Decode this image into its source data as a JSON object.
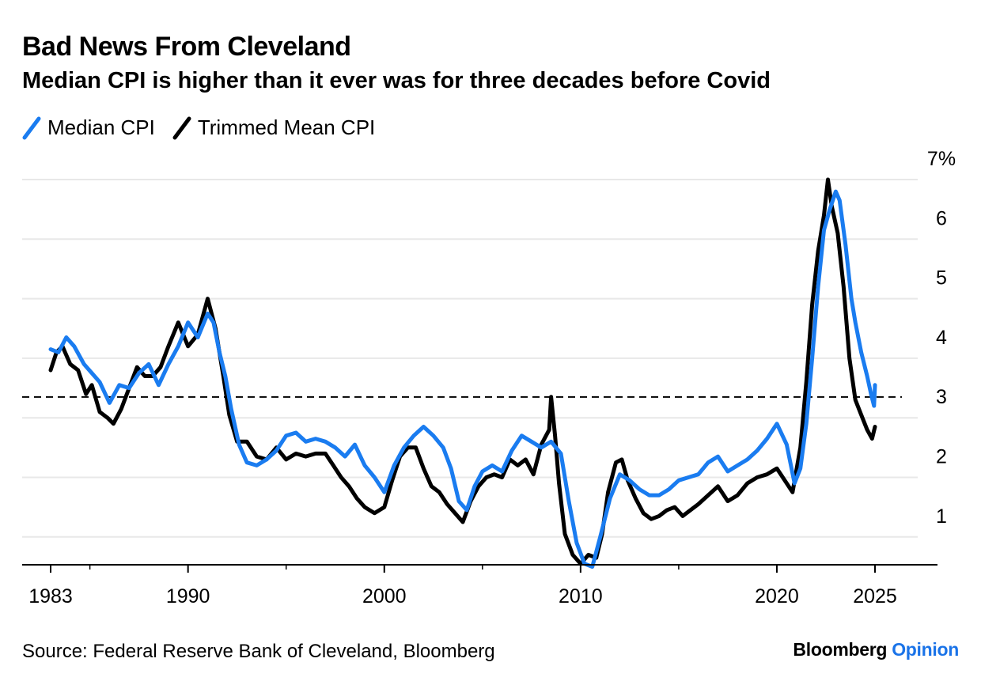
{
  "title": "Bad News From Cleveland",
  "subtitle": "Median CPI is higher than it ever was for three decades before Covid",
  "source": "Source: Federal Reserve Bank of Cleveland, Bloomberg",
  "brand": {
    "name": "Bloomberg",
    "accent": "Opinion"
  },
  "colors": {
    "median": "#1a7cf0",
    "trimmed": "#000000",
    "grid": "#e8e8e8",
    "accent": "#1a73e8"
  },
  "chart_data": {
    "type": "line",
    "title": "Bad News From Cleveland",
    "subtitle": "Median CPI is higher than it ever was for three decades before Covid",
    "xlabel": "",
    "ylabel": "",
    "x_range": [
      1983,
      2025
    ],
    "ylim": [
      0.5,
      7
    ],
    "y_ticks": [
      1,
      2,
      3,
      4,
      5,
      6,
      7
    ],
    "y_tick_labels": [
      "1",
      "2",
      "3",
      "4",
      "5",
      "6",
      "7%"
    ],
    "x_ticks": [
      1983,
      1990,
      2000,
      2010,
      2020,
      2025
    ],
    "x_tick_labels": [
      "1983",
      "1990",
      "2000",
      "2010",
      "2020",
      "2025"
    ],
    "grid": true,
    "legend": "top-left",
    "reference_line": {
      "value": 3.35,
      "style": "dashed"
    },
    "series": [
      {
        "name": "Median CPI",
        "color": "#1a7cf0",
        "points": [
          [
            1983.0,
            4.15
          ],
          [
            1983.4,
            4.1
          ],
          [
            1983.8,
            4.35
          ],
          [
            1984.2,
            4.2
          ],
          [
            1984.7,
            3.9
          ],
          [
            1985.1,
            3.75
          ],
          [
            1985.5,
            3.6
          ],
          [
            1986.0,
            3.25
          ],
          [
            1986.5,
            3.55
          ],
          [
            1987.0,
            3.5
          ],
          [
            1987.5,
            3.75
          ],
          [
            1988.0,
            3.9
          ],
          [
            1988.5,
            3.55
          ],
          [
            1989.0,
            3.9
          ],
          [
            1989.5,
            4.2
          ],
          [
            1990.0,
            4.6
          ],
          [
            1990.5,
            4.35
          ],
          [
            1991.0,
            4.75
          ],
          [
            1991.3,
            4.6
          ],
          [
            1991.6,
            4.1
          ],
          [
            1991.9,
            3.7
          ],
          [
            1992.2,
            3.15
          ],
          [
            1992.6,
            2.55
          ],
          [
            1993.0,
            2.25
          ],
          [
            1993.5,
            2.2
          ],
          [
            1994.0,
            2.3
          ],
          [
            1994.5,
            2.45
          ],
          [
            1995.0,
            2.7
          ],
          [
            1995.5,
            2.75
          ],
          [
            1996.0,
            2.6
          ],
          [
            1996.5,
            2.65
          ],
          [
            1997.0,
            2.6
          ],
          [
            1997.5,
            2.5
          ],
          [
            1998.0,
            2.35
          ],
          [
            1998.5,
            2.55
          ],
          [
            1999.0,
            2.2
          ],
          [
            1999.5,
            2.0
          ],
          [
            2000.0,
            1.75
          ],
          [
            2000.5,
            2.2
          ],
          [
            2001.0,
            2.5
          ],
          [
            2001.5,
            2.7
          ],
          [
            2002.0,
            2.85
          ],
          [
            2002.5,
            2.7
          ],
          [
            2003.0,
            2.5
          ],
          [
            2003.4,
            2.15
          ],
          [
            2003.8,
            1.6
          ],
          [
            2004.2,
            1.45
          ],
          [
            2004.6,
            1.85
          ],
          [
            2005.0,
            2.1
          ],
          [
            2005.5,
            2.2
          ],
          [
            2006.0,
            2.1
          ],
          [
            2006.5,
            2.45
          ],
          [
            2007.0,
            2.7
          ],
          [
            2007.5,
            2.6
          ],
          [
            2008.0,
            2.5
          ],
          [
            2008.5,
            2.6
          ],
          [
            2009.0,
            2.4
          ],
          [
            2009.4,
            1.6
          ],
          [
            2009.8,
            0.9
          ],
          [
            2010.2,
            0.55
          ],
          [
            2010.6,
            0.5
          ],
          [
            2011.0,
            1.0
          ],
          [
            2011.5,
            1.65
          ],
          [
            2012.0,
            2.05
          ],
          [
            2012.5,
            1.95
          ],
          [
            2013.0,
            1.8
          ],
          [
            2013.5,
            1.7
          ],
          [
            2014.0,
            1.7
          ],
          [
            2014.5,
            1.8
          ],
          [
            2015.0,
            1.95
          ],
          [
            2015.5,
            2.0
          ],
          [
            2016.0,
            2.05
          ],
          [
            2016.5,
            2.25
          ],
          [
            2017.0,
            2.35
          ],
          [
            2017.5,
            2.1
          ],
          [
            2018.0,
            2.2
          ],
          [
            2018.5,
            2.3
          ],
          [
            2019.0,
            2.45
          ],
          [
            2019.5,
            2.65
          ],
          [
            2020.0,
            2.9
          ],
          [
            2020.5,
            2.55
          ],
          [
            2020.9,
            1.9
          ],
          [
            2021.2,
            2.15
          ],
          [
            2021.5,
            2.9
          ],
          [
            2021.8,
            4.0
          ],
          [
            2022.1,
            5.2
          ],
          [
            2022.4,
            6.15
          ],
          [
            2022.7,
            6.5
          ],
          [
            2023.0,
            6.8
          ],
          [
            2023.2,
            6.65
          ],
          [
            2023.5,
            5.9
          ],
          [
            2023.8,
            5.0
          ],
          [
            2024.0,
            4.6
          ],
          [
            2024.3,
            4.1
          ],
          [
            2024.6,
            3.7
          ],
          [
            2024.8,
            3.4
          ],
          [
            2024.95,
            3.2
          ],
          [
            2025.0,
            3.55
          ]
        ]
      },
      {
        "name": "Trimmed Mean CPI",
        "color": "#000000",
        "points": [
          [
            1983.0,
            3.8
          ],
          [
            1983.3,
            4.1
          ],
          [
            1983.6,
            4.2
          ],
          [
            1984.0,
            3.9
          ],
          [
            1984.4,
            3.8
          ],
          [
            1984.8,
            3.4
          ],
          [
            1985.1,
            3.55
          ],
          [
            1985.5,
            3.1
          ],
          [
            1985.9,
            3.0
          ],
          [
            1986.2,
            2.9
          ],
          [
            1986.6,
            3.15
          ],
          [
            1987.0,
            3.5
          ],
          [
            1987.4,
            3.85
          ],
          [
            1987.8,
            3.7
          ],
          [
            1988.2,
            3.7
          ],
          [
            1988.6,
            3.85
          ],
          [
            1989.0,
            4.2
          ],
          [
            1989.5,
            4.6
          ],
          [
            1990.0,
            4.2
          ],
          [
            1990.5,
            4.4
          ],
          [
            1991.0,
            5.0
          ],
          [
            1991.4,
            4.5
          ],
          [
            1991.8,
            3.7
          ],
          [
            1992.1,
            3.05
          ],
          [
            1992.5,
            2.6
          ],
          [
            1993.0,
            2.6
          ],
          [
            1993.5,
            2.35
          ],
          [
            1994.0,
            2.3
          ],
          [
            1994.5,
            2.5
          ],
          [
            1995.0,
            2.3
          ],
          [
            1995.5,
            2.4
          ],
          [
            1996.0,
            2.35
          ],
          [
            1996.5,
            2.4
          ],
          [
            1997.0,
            2.4
          ],
          [
            1997.4,
            2.2
          ],
          [
            1997.8,
            2.0
          ],
          [
            1998.2,
            1.85
          ],
          [
            1998.6,
            1.65
          ],
          [
            1999.0,
            1.5
          ],
          [
            1999.5,
            1.4
          ],
          [
            2000.0,
            1.5
          ],
          [
            2000.4,
            1.95
          ],
          [
            2000.8,
            2.35
          ],
          [
            2001.2,
            2.5
          ],
          [
            2001.6,
            2.5
          ],
          [
            2002.0,
            2.15
          ],
          [
            2002.4,
            1.85
          ],
          [
            2002.8,
            1.75
          ],
          [
            2003.2,
            1.55
          ],
          [
            2003.6,
            1.4
          ],
          [
            2004.0,
            1.25
          ],
          [
            2004.4,
            1.6
          ],
          [
            2004.8,
            1.85
          ],
          [
            2005.2,
            2.0
          ],
          [
            2005.6,
            2.05
          ],
          [
            2006.0,
            2.0
          ],
          [
            2006.4,
            2.3
          ],
          [
            2006.8,
            2.2
          ],
          [
            2007.2,
            2.3
          ],
          [
            2007.6,
            2.05
          ],
          [
            2008.0,
            2.55
          ],
          [
            2008.4,
            2.8
          ],
          [
            2008.5,
            3.35
          ],
          [
            2008.7,
            2.7
          ],
          [
            2008.9,
            1.9
          ],
          [
            2009.2,
            1.05
          ],
          [
            2009.6,
            0.7
          ],
          [
            2010.0,
            0.55
          ],
          [
            2010.4,
            0.7
          ],
          [
            2010.8,
            0.65
          ],
          [
            2011.1,
            1.05
          ],
          [
            2011.4,
            1.75
          ],
          [
            2011.8,
            2.25
          ],
          [
            2012.1,
            2.3
          ],
          [
            2012.4,
            1.95
          ],
          [
            2012.8,
            1.65
          ],
          [
            2013.2,
            1.4
          ],
          [
            2013.6,
            1.3
          ],
          [
            2014.0,
            1.35
          ],
          [
            2014.4,
            1.45
          ],
          [
            2014.8,
            1.5
          ],
          [
            2015.2,
            1.35
          ],
          [
            2015.6,
            1.45
          ],
          [
            2016.0,
            1.55
          ],
          [
            2016.5,
            1.7
          ],
          [
            2017.0,
            1.85
          ],
          [
            2017.5,
            1.6
          ],
          [
            2018.0,
            1.7
          ],
          [
            2018.5,
            1.9
          ],
          [
            2019.0,
            2.0
          ],
          [
            2019.5,
            2.05
          ],
          [
            2020.0,
            2.15
          ],
          [
            2020.4,
            1.95
          ],
          [
            2020.8,
            1.75
          ],
          [
            2021.2,
            2.5
          ],
          [
            2021.5,
            3.6
          ],
          [
            2021.8,
            4.9
          ],
          [
            2022.1,
            5.8
          ],
          [
            2022.4,
            6.4
          ],
          [
            2022.6,
            7.0
          ],
          [
            2022.8,
            6.55
          ],
          [
            2023.1,
            6.1
          ],
          [
            2023.4,
            5.2
          ],
          [
            2023.7,
            4.0
          ],
          [
            2024.0,
            3.3
          ],
          [
            2024.3,
            3.05
          ],
          [
            2024.6,
            2.8
          ],
          [
            2024.85,
            2.65
          ],
          [
            2025.0,
            2.85
          ]
        ]
      }
    ]
  }
}
